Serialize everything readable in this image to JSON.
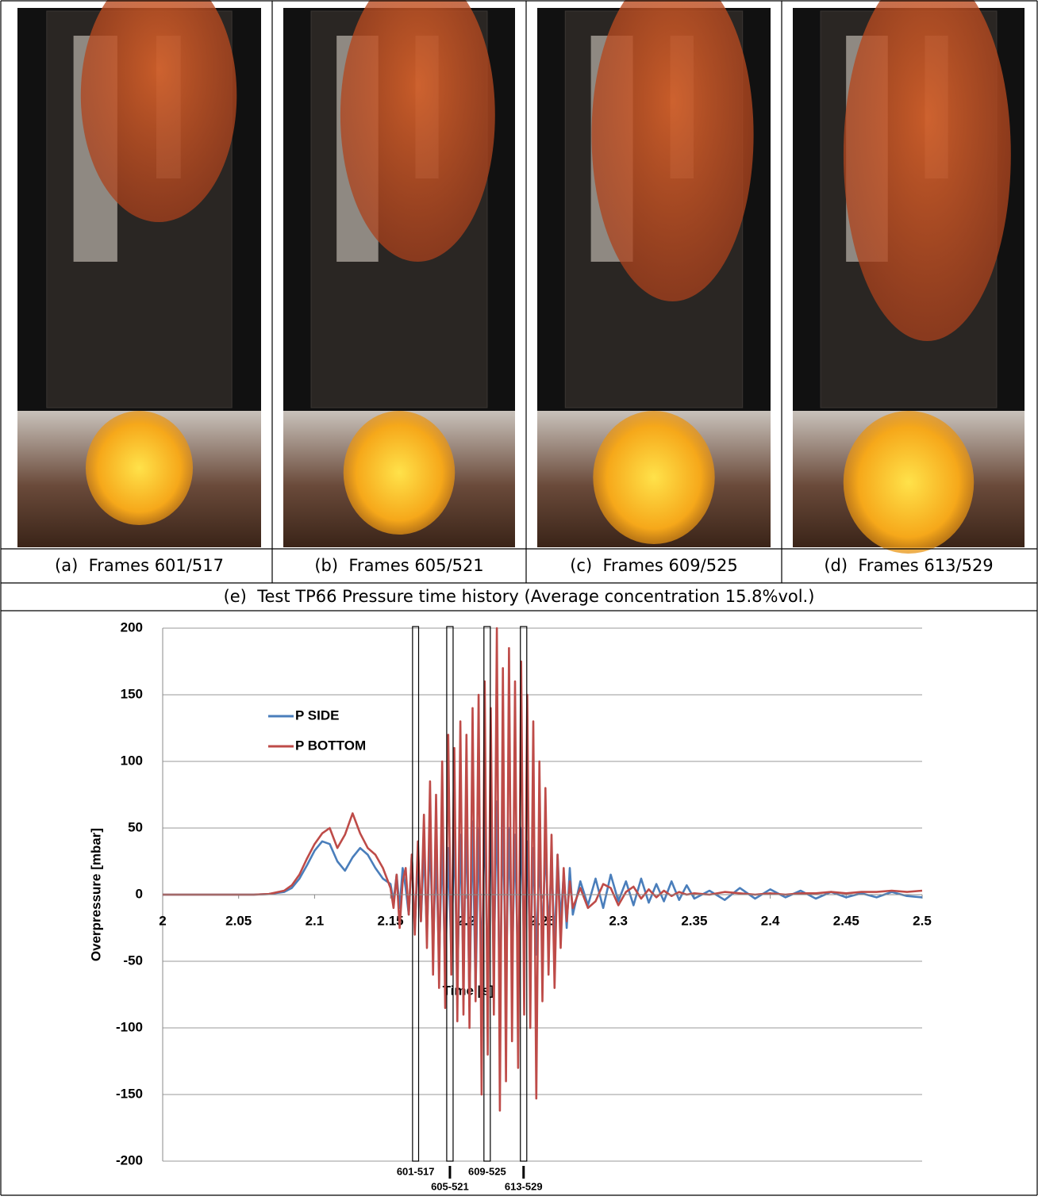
{
  "panels": [
    {
      "caption": "(a)  Frames 601/517"
    },
    {
      "caption": "(b)  Frames 605/521"
    },
    {
      "caption": "(c)  Frames 609/525"
    },
    {
      "caption": "(d)  Frames 613/529"
    }
  ],
  "chart_data": {
    "type": "line",
    "title": "(e)  Test TP66 Pressure time history (Average concentration 15.8%vol.)",
    "x_label": "Time [s]",
    "y_label": "Overpressure  [mbar]",
    "x": [
      2.0,
      2.02,
      2.04,
      2.06,
      2.07,
      2.08,
      2.085,
      2.09,
      2.095,
      2.1,
      2.105,
      2.11,
      2.115,
      2.12,
      2.125,
      2.13,
      2.135,
      2.14,
      2.145,
      2.15,
      2.152,
      2.154,
      2.156,
      2.158,
      2.16,
      2.162,
      2.164,
      2.166,
      2.168,
      2.17,
      2.172,
      2.174,
      2.176,
      2.178,
      2.18,
      2.182,
      2.184,
      2.186,
      2.188,
      2.19,
      2.192,
      2.194,
      2.196,
      2.198,
      2.2,
      2.202,
      2.204,
      2.206,
      2.208,
      2.21,
      2.212,
      2.214,
      2.216,
      2.218,
      2.22,
      2.222,
      2.224,
      2.226,
      2.228,
      2.23,
      2.232,
      2.234,
      2.236,
      2.238,
      2.24,
      2.242,
      2.244,
      2.246,
      2.248,
      2.25,
      2.252,
      2.254,
      2.256,
      2.258,
      2.26,
      2.262,
      2.264,
      2.266,
      2.268,
      2.27,
      2.275,
      2.28,
      2.285,
      2.29,
      2.295,
      2.3,
      2.305,
      2.31,
      2.315,
      2.32,
      2.325,
      2.33,
      2.335,
      2.34,
      2.345,
      2.35,
      2.36,
      2.37,
      2.38,
      2.39,
      2.4,
      2.41,
      2.42,
      2.43,
      2.44,
      2.45,
      2.46,
      2.47,
      2.48,
      2.49,
      2.5
    ],
    "series": [
      {
        "name": "P SIDE",
        "color": "#4a7ebb",
        "values": [
          0,
          0,
          0,
          0,
          0.5,
          2,
          5,
          12,
          22,
          33,
          40,
          38,
          25,
          18,
          28,
          35,
          30,
          20,
          12,
          8,
          -5,
          15,
          -10,
          20,
          5,
          -15,
          30,
          -25,
          25,
          -20,
          35,
          -30,
          45,
          -40,
          30,
          -50,
          40,
          -60,
          35,
          -45,
          50,
          -70,
          45,
          -55,
          60,
          -80,
          55,
          -75,
          50,
          -60,
          65,
          -70,
          55,
          -50,
          70,
          -85,
          60,
          -65,
          50,
          -55,
          45,
          -60,
          50,
          -40,
          40,
          -50,
          35,
          -45,
          30,
          -35,
          40,
          -30,
          25,
          -40,
          30,
          -20,
          15,
          -25,
          20,
          -15,
          10,
          -8,
          12,
          -10,
          15,
          -5,
          10,
          -8,
          12,
          -6,
          8,
          -5,
          10,
          -4,
          7,
          -3,
          3,
          -4,
          5,
          -3,
          4,
          -2,
          3,
          -3,
          2,
          -2,
          1,
          -2,
          2,
          -1,
          -2
        ]
      },
      {
        "name": "P BOTTOM",
        "color": "#be4b48",
        "values": [
          0,
          0,
          0,
          0,
          0.5,
          3,
          7,
          15,
          27,
          38,
          46,
          50,
          35,
          45,
          61,
          46,
          35,
          30,
          20,
          5,
          -10,
          15,
          -25,
          10,
          20,
          -15,
          30,
          -30,
          40,
          -20,
          60,
          -40,
          85,
          -60,
          75,
          -70,
          100,
          -85,
          120,
          -60,
          110,
          -95,
          130,
          -90,
          120,
          -100,
          140,
          -80,
          150,
          -150,
          160,
          -120,
          140,
          -90,
          200,
          -162,
          170,
          -140,
          185,
          -110,
          160,
          -130,
          175,
          -90,
          150,
          -100,
          130,
          -153,
          100,
          -80,
          80,
          -60,
          45,
          -70,
          30,
          -40,
          20,
          -20,
          10,
          -10,
          5,
          -10,
          -5,
          8,
          5,
          -8,
          2,
          6,
          -3,
          4,
          -2,
          3,
          -1,
          2,
          0,
          1,
          0,
          2,
          1,
          0,
          1,
          0,
          1,
          1,
          2,
          1,
          2,
          2,
          3,
          2,
          3
        ]
      }
    ],
    "xlim": [
      2,
      2.5
    ],
    "ylim": [
      -200,
      200
    ],
    "xticks": [
      2,
      2.05,
      2.1,
      2.15,
      2.2,
      2.25,
      2.3,
      2.35,
      2.4,
      2.45,
      2.5
    ],
    "yticks": [
      -200,
      -150,
      -100,
      -50,
      0,
      50,
      100,
      150,
      200
    ],
    "grid": true,
    "legend": "upper left",
    "frame_markers": [
      {
        "label": "601-517",
        "x": [
          2.1645,
          2.1685
        ]
      },
      {
        "label": "605-521",
        "x": [
          2.187,
          2.1912
        ]
      },
      {
        "label": "609-525",
        "x": [
          2.2115,
          2.2157
        ]
      },
      {
        "label": "613-529",
        "x": [
          2.2355,
          2.2397
        ]
      }
    ]
  }
}
